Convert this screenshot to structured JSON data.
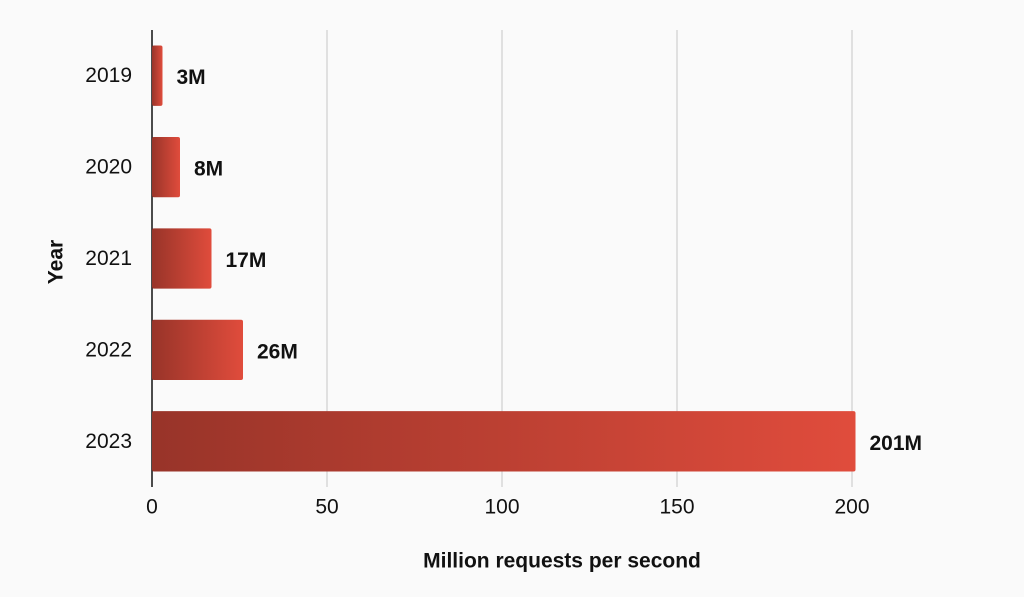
{
  "chart_data": {
    "type": "bar",
    "orientation": "horizontal",
    "x_label": "Million requests per second",
    "y_label": "Year",
    "categories": [
      "2019",
      "2020",
      "2021",
      "2022",
      "2023"
    ],
    "values": [
      3,
      8,
      17,
      26,
      201
    ],
    "value_labels": [
      "3M",
      "8M",
      "17M",
      "26M",
      "201M"
    ],
    "color": "#e04c3c",
    "xlim": [
      0,
      200
    ],
    "xticks": [
      0,
      50,
      100,
      150,
      200
    ],
    "grid": true
  }
}
